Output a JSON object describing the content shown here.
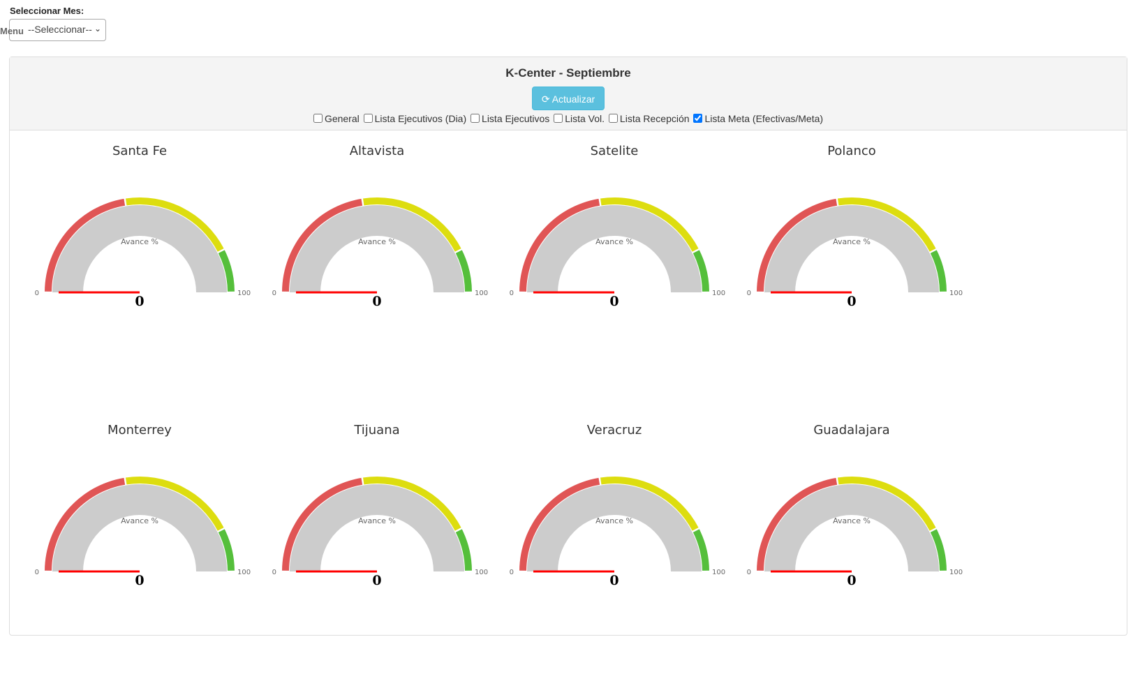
{
  "month_selector": {
    "label": "Seleccionar Mes:",
    "menu_text": "Menu",
    "selected": "--Seleccionar--"
  },
  "panel": {
    "title": "K-Center - Septiembre",
    "refresh_button": "Actualizar",
    "checkboxes": [
      {
        "label": "General",
        "checked": false
      },
      {
        "label": "Lista Ejecutivos (Dia)",
        "checked": false
      },
      {
        "label": "Lista Ejecutivos",
        "checked": false
      },
      {
        "label": "Lista Vol.",
        "checked": false
      },
      {
        "label": "Lista Recepción",
        "checked": false
      },
      {
        "label": "Lista Meta (Efectivas/Meta)",
        "checked": true
      }
    ]
  },
  "gauge_common": {
    "pane_label": "Avance %",
    "min_label": "0",
    "max_label": "100",
    "min": 0,
    "max": 100,
    "bands": [
      {
        "from": 0,
        "to": 45,
        "color": "#E05555"
      },
      {
        "from": 45,
        "to": 85,
        "color": "#DDDD0F"
      },
      {
        "from": 85,
        "to": 100,
        "color": "#55BF3B"
      }
    ],
    "pane_color": "#CCCCCC",
    "needle_color": "#FF0000"
  },
  "gauges": [
    {
      "name": "Santa Fe",
      "value": 0,
      "value_label": "0"
    },
    {
      "name": "Altavista",
      "value": 0,
      "value_label": "0"
    },
    {
      "name": "Satelite",
      "value": 0,
      "value_label": "0"
    },
    {
      "name": "Polanco",
      "value": 0,
      "value_label": "0"
    },
    {
      "name": "Monterrey",
      "value": 0,
      "value_label": "0"
    },
    {
      "name": "Tijuana",
      "value": 0,
      "value_label": "0"
    },
    {
      "name": "Veracruz",
      "value": 0,
      "value_label": "0"
    },
    {
      "name": "Guadalajara",
      "value": 0,
      "value_label": "0"
    }
  ]
}
